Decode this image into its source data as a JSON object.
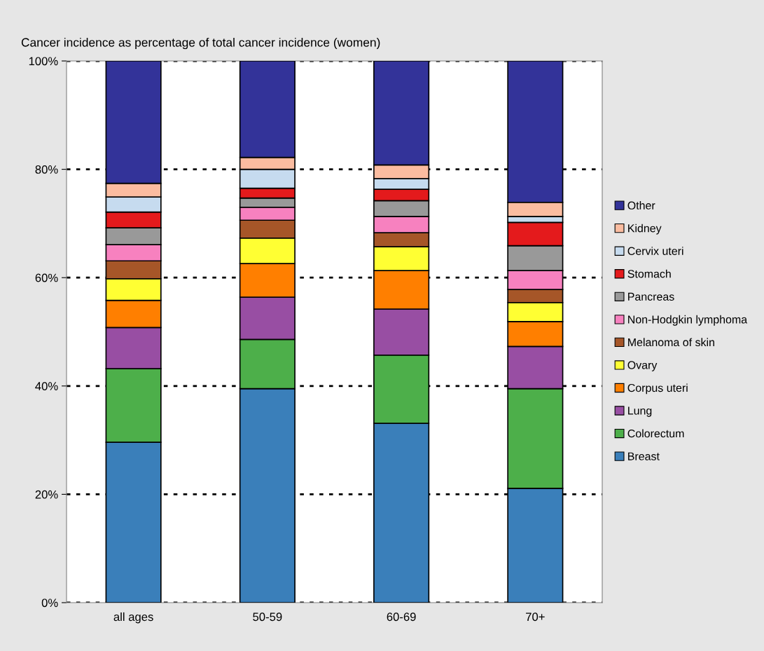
{
  "chart_data": {
    "type": "bar",
    "stacked": true,
    "title": "Cancer incidence as percentage of total cancer incidence (women)",
    "categories": [
      "all ages",
      "50-59",
      "60-69",
      "70+"
    ],
    "series": [
      {
        "name": "Breast",
        "color": "#3a7fba",
        "values": [
          29.6,
          39.5,
          33.1,
          21.1
        ]
      },
      {
        "name": "Colorectum",
        "color": "#4daf4a",
        "values": [
          13.6,
          9.1,
          12.6,
          18.4
        ]
      },
      {
        "name": "Lung",
        "color": "#984ea3",
        "values": [
          7.6,
          7.8,
          8.5,
          7.8
        ]
      },
      {
        "name": "Corpus uteri",
        "color": "#ff7f00",
        "values": [
          5.0,
          6.2,
          7.1,
          4.6
        ]
      },
      {
        "name": "Ovary",
        "color": "#ffff33",
        "values": [
          4.0,
          4.7,
          4.4,
          3.5
        ]
      },
      {
        "name": "Melanoma of skin",
        "color": "#a65628",
        "values": [
          3.3,
          3.3,
          2.6,
          2.4
        ]
      },
      {
        "name": "Non-Hodgkin lymphoma",
        "color": "#f781bf",
        "values": [
          3.0,
          2.4,
          3.0,
          3.5
        ]
      },
      {
        "name": "Pancreas",
        "color": "#999999",
        "values": [
          3.1,
          1.7,
          2.9,
          4.6
        ]
      },
      {
        "name": "Stomach",
        "color": "#e41a1c",
        "values": [
          2.9,
          1.8,
          2.1,
          4.3
        ]
      },
      {
        "name": "Cervix uteri",
        "color": "#c6dbef",
        "values": [
          2.8,
          3.5,
          2.0,
          1.1
        ]
      },
      {
        "name": "Kidney",
        "color": "#fbbca0",
        "values": [
          2.5,
          2.2,
          2.5,
          2.6
        ]
      },
      {
        "name": "Other",
        "color": "#333399",
        "values": [
          22.6,
          17.8,
          19.2,
          26.1
        ]
      }
    ],
    "ylim": [
      0,
      100
    ],
    "yticks": [
      {
        "value": 0,
        "label": "0%"
      },
      {
        "value": 20,
        "label": "20%"
      },
      {
        "value": 40,
        "label": "40%"
      },
      {
        "value": 60,
        "label": "60%"
      },
      {
        "value": 80,
        "label": "80%"
      },
      {
        "value": 100,
        "label": "100%"
      }
    ],
    "grid": "y",
    "legend": "right"
  }
}
